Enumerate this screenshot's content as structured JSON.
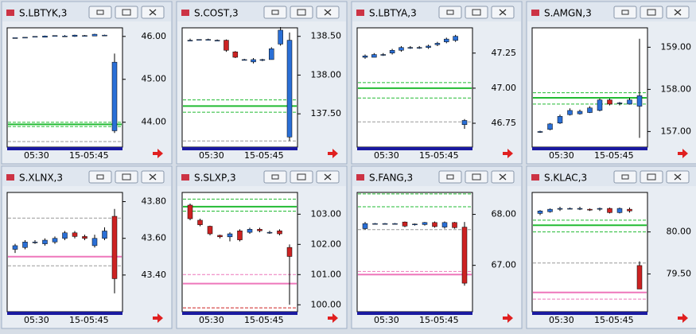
{
  "windows": [
    {
      "title": "S.LBTYK,3",
      "time_labels": [
        "05:30",
        "15-05:45"
      ],
      "ylim": [
        43.42,
        46.2
      ],
      "yticks": [
        {
          "value": 46,
          "label": "46.00"
        },
        {
          "value": 45,
          "label": "45.00"
        },
        {
          "value": 44,
          "label": "44.00"
        }
      ],
      "candles": [
        [
          45.97,
          45.97,
          45.97,
          45.97
        ],
        [
          45.98,
          45.98,
          45.98,
          45.98
        ],
        [
          46.0,
          46.0,
          46.0,
          46.0
        ],
        [
          45.98,
          46.02,
          45.98,
          46.01
        ],
        [
          46.0,
          46.02,
          46.0,
          46.02
        ],
        [
          46.01,
          46.03,
          46.0,
          46.01
        ],
        [
          46.0,
          46.04,
          45.99,
          46.03
        ],
        [
          46.02,
          46.03,
          46.01,
          46.02
        ],
        [
          46.01,
          46.06,
          46.01,
          46.05
        ],
        [
          46.03,
          46.04,
          46.02,
          46.03
        ],
        [
          43.8,
          45.6,
          43.75,
          45.4
        ]
      ],
      "levels": [
        {
          "value": 43.95,
          "color": "#22bb33",
          "dashed": false
        },
        {
          "value": 44.0,
          "color": "#22bb33",
          "dashed": true
        },
        {
          "value": 43.9,
          "color": "#22bb33",
          "dashed": true
        },
        {
          "value": 43.55,
          "color": "#999999",
          "dashed": true
        }
      ]
    },
    {
      "title": "S.COST,3",
      "time_labels": [
        "05:30",
        "15-05:45"
      ],
      "ylim": [
        137.07,
        138.61
      ],
      "yticks": [
        {
          "value": 138.5,
          "label": "138.50"
        },
        {
          "value": 138,
          "label": "138.00"
        },
        {
          "value": 137.5,
          "label": "137.50"
        }
      ],
      "candles": [
        [
          138.45,
          138.47,
          138.44,
          138.45
        ],
        [
          138.46,
          138.46,
          138.46,
          138.46
        ],
        [
          138.46,
          138.47,
          138.45,
          138.46
        ],
        [
          138.45,
          138.46,
          138.44,
          138.45
        ],
        [
          138.45,
          138.46,
          138.3,
          138.32
        ],
        [
          138.3,
          138.31,
          138.22,
          138.23
        ],
        [
          138.2,
          138.21,
          138.19,
          138.2
        ],
        [
          138.17,
          138.22,
          138.15,
          138.2
        ],
        [
          138.2,
          138.21,
          138.18,
          138.2
        ],
        [
          138.2,
          138.36,
          138.2,
          138.34
        ],
        [
          138.4,
          138.62,
          138.38,
          138.58
        ],
        [
          137.2,
          138.55,
          137.15,
          138.45
        ]
      ],
      "levels": [
        {
          "value": 137.6,
          "color": "#22bb33",
          "dashed": false
        },
        {
          "value": 137.68,
          "color": "#22bb33",
          "dashed": true
        },
        {
          "value": 137.52,
          "color": "#22bb33",
          "dashed": true
        },
        {
          "value": 137.15,
          "color": "#999999",
          "dashed": true
        }
      ]
    },
    {
      "title": "S.LBTYA,3",
      "time_labels": [
        "05:30",
        "15-05:45"
      ],
      "ylim": [
        46.58,
        47.43
      ],
      "yticks": [
        {
          "value": 47.25,
          "label": "47.25"
        },
        {
          "value": 47,
          "label": "47.00"
        },
        {
          "value": 46.75,
          "label": "46.75"
        }
      ],
      "candles": [
        [
          47.22,
          47.24,
          47.21,
          47.23
        ],
        [
          47.22,
          47.25,
          47.22,
          47.24
        ],
        [
          47.24,
          47.25,
          47.23,
          47.24
        ],
        [
          47.25,
          47.28,
          47.24,
          47.27
        ],
        [
          47.27,
          47.3,
          47.26,
          47.29
        ],
        [
          47.29,
          47.3,
          47.28,
          47.29
        ],
        [
          47.29,
          47.3,
          47.28,
          47.29
        ],
        [
          47.29,
          47.31,
          47.28,
          47.3
        ],
        [
          47.31,
          47.33,
          47.3,
          47.32
        ],
        [
          47.33,
          47.36,
          47.32,
          47.35
        ],
        [
          47.34,
          47.38,
          47.33,
          47.37
        ],
        [
          46.74,
          46.78,
          46.71,
          46.77
        ]
      ],
      "levels": [
        {
          "value": 47.0,
          "color": "#22bb33",
          "dashed": false
        },
        {
          "value": 47.04,
          "color": "#22bb33",
          "dashed": true
        },
        {
          "value": 46.93,
          "color": "#22bb33",
          "dashed": true
        },
        {
          "value": 46.76,
          "color": "#999999",
          "dashed": true
        }
      ]
    },
    {
      "title": "S.AMGN,3",
      "time_labels": [
        "05:30",
        "15-05:45"
      ],
      "ylim": [
        156.63,
        159.46
      ],
      "yticks": [
        {
          "value": 159,
          "label": "159.00"
        },
        {
          "value": 158,
          "label": "158.00"
        },
        {
          "value": 157,
          "label": "157.00"
        }
      ],
      "candles": [
        [
          156.98,
          157.02,
          156.97,
          157.0
        ],
        [
          157.05,
          157.2,
          157.03,
          157.18
        ],
        [
          157.2,
          157.4,
          157.18,
          157.36
        ],
        [
          157.4,
          157.55,
          157.38,
          157.5
        ],
        [
          157.42,
          157.52,
          157.4,
          157.48
        ],
        [
          157.45,
          157.6,
          157.44,
          157.56
        ],
        [
          157.5,
          157.78,
          157.48,
          157.75
        ],
        [
          157.75,
          157.78,
          157.62,
          157.65
        ],
        [
          157.66,
          157.7,
          157.62,
          157.68
        ],
        [
          157.65,
          157.8,
          157.64,
          157.75
        ],
        [
          157.6,
          159.2,
          156.85,
          157.85
        ]
      ],
      "levels": [
        {
          "value": 157.8,
          "color": "#22bb33",
          "dashed": false
        },
        {
          "value": 157.65,
          "color": "#22bb33",
          "dashed": true
        },
        {
          "value": 157.92,
          "color": "#22bb33",
          "dashed": true
        }
      ]
    },
    {
      "title": "S.XLNX,3",
      "time_labels": [
        "05:30",
        "15-05:45"
      ],
      "ylim": [
        43.2,
        43.85
      ],
      "yticks": [
        {
          "value": 43.8,
          "label": "43.80"
        },
        {
          "value": 43.6,
          "label": "43.60"
        },
        {
          "value": 43.4,
          "label": "43.40"
        }
      ],
      "candles": [
        [
          43.54,
          43.57,
          43.52,
          43.56
        ],
        [
          43.55,
          43.59,
          43.54,
          43.58
        ],
        [
          43.58,
          43.59,
          43.57,
          43.58
        ],
        [
          43.57,
          43.6,
          43.56,
          43.59
        ],
        [
          43.58,
          43.61,
          43.57,
          43.6
        ],
        [
          43.6,
          43.64,
          43.59,
          43.63
        ],
        [
          43.63,
          43.64,
          43.6,
          43.61
        ],
        [
          43.61,
          43.62,
          43.59,
          43.6
        ],
        [
          43.56,
          43.62,
          43.55,
          43.6
        ],
        [
          43.6,
          43.66,
          43.59,
          43.64
        ],
        [
          43.72,
          43.76,
          43.3,
          43.38
        ]
      ],
      "levels": [
        {
          "value": 43.5,
          "color": "#ee77bb",
          "dashed": false
        },
        {
          "value": 43.71,
          "color": "#999999",
          "dashed": true
        },
        {
          "value": 43.45,
          "color": "#999999",
          "dashed": true
        }
      ]
    },
    {
      "title": "S.SLXP,3",
      "time_labels": [
        "05:30",
        "15-05:45"
      ],
      "ylim": [
        99.77,
        103.72
      ],
      "yticks": [
        {
          "value": 103,
          "label": "103.00"
        },
        {
          "value": 102,
          "label": "102.00"
        },
        {
          "value": 101,
          "label": "101.00"
        },
        {
          "value": 100,
          "label": "100.00"
        }
      ],
      "candles": [
        [
          103.3,
          103.35,
          102.8,
          102.85
        ],
        [
          102.8,
          102.85,
          102.6,
          102.65
        ],
        [
          102.6,
          102.62,
          102.3,
          102.35
        ],
        [
          102.3,
          102.32,
          102.2,
          102.25
        ],
        [
          102.25,
          102.4,
          102.1,
          102.35
        ],
        [
          102.45,
          102.5,
          102.1,
          102.15
        ],
        [
          102.4,
          102.55,
          102.35,
          102.5
        ],
        [
          102.5,
          102.55,
          102.4,
          102.45
        ],
        [
          102.4,
          102.45,
          102.35,
          102.4
        ],
        [
          102.45,
          102.5,
          102.3,
          102.35
        ],
        [
          101.9,
          102.0,
          100.0,
          101.6
        ]
      ],
      "levels": [
        {
          "value": 103.25,
          "color": "#22bb33",
          "dashed": false
        },
        {
          "value": 103.5,
          "color": "#22bb33",
          "dashed": true
        },
        {
          "value": 103.1,
          "color": "#22bb33",
          "dashed": true
        },
        {
          "value": 100.7,
          "color": "#ee77bb",
          "dashed": false
        },
        {
          "value": 101.0,
          "color": "#ee77bb",
          "dashed": true
        },
        {
          "value": 99.9,
          "color": "#cc2222",
          "dashed": true
        }
      ]
    },
    {
      "title": "S.FANG,3",
      "time_labels": [
        "05:30",
        "15-05:45"
      ],
      "ylim": [
        66.09,
        68.43
      ],
      "yticks": [
        {
          "value": 68,
          "label": "68.00"
        },
        {
          "value": 67,
          "label": "67.00"
        }
      ],
      "candles": [
        [
          67.72,
          67.85,
          67.7,
          67.82
        ],
        [
          67.82,
          67.83,
          67.81,
          67.82
        ],
        [
          67.82,
          67.83,
          67.81,
          67.82
        ],
        [
          67.82,
          67.83,
          67.81,
          67.82
        ],
        [
          67.85,
          67.86,
          67.75,
          67.77
        ],
        [
          67.8,
          67.82,
          67.78,
          67.81
        ],
        [
          67.8,
          67.85,
          67.78,
          67.84
        ],
        [
          67.84,
          67.86,
          67.74,
          67.76
        ],
        [
          67.75,
          67.86,
          67.72,
          67.84
        ],
        [
          67.84,
          67.85,
          67.72,
          67.74
        ],
        [
          67.75,
          67.85,
          66.6,
          66.65
        ]
      ],
      "levels": [
        {
          "value": 68.4,
          "color": "#22bb33",
          "dashed": true
        },
        {
          "value": 68.15,
          "color": "#22bb33",
          "dashed": true
        },
        {
          "value": 67.7,
          "color": "#999999",
          "dashed": true
        },
        {
          "value": 66.82,
          "color": "#ee77bb",
          "dashed": false
        },
        {
          "value": 66.88,
          "color": "#ee77bb",
          "dashed": true
        }
      ]
    },
    {
      "title": "S.KLAC,3",
      "time_labels": [
        "05:30",
        "15-05:45"
      ],
      "ylim": [
        79.05,
        80.47
      ],
      "yticks": [
        {
          "value": 80,
          "label": "80.00"
        },
        {
          "value": 79.5,
          "label": "79.50"
        }
      ],
      "candles": [
        [
          80.22,
          80.26,
          80.2,
          80.25
        ],
        [
          80.24,
          80.28,
          80.23,
          80.27
        ],
        [
          80.27,
          80.3,
          80.25,
          80.28
        ],
        [
          80.28,
          80.29,
          80.27,
          80.28
        ],
        [
          80.28,
          80.3,
          80.26,
          80.28
        ],
        [
          80.27,
          80.28,
          80.25,
          80.26
        ],
        [
          80.27,
          80.29,
          80.25,
          80.28
        ],
        [
          80.28,
          80.29,
          80.22,
          80.23
        ],
        [
          80.23,
          80.29,
          80.22,
          80.28
        ],
        [
          80.27,
          80.29,
          80.23,
          80.25
        ],
        [
          79.6,
          79.65,
          79.32,
          79.32
        ]
      ],
      "levels": [
        {
          "value": 80.08,
          "color": "#22bb33",
          "dashed": false
        },
        {
          "value": 80.14,
          "color": "#22bb33",
          "dashed": true
        },
        {
          "value": 80.0,
          "color": "#22bb33",
          "dashed": true
        },
        {
          "value": 79.63,
          "color": "#999999",
          "dashed": true
        },
        {
          "value": 79.28,
          "color": "#ee77bb",
          "dashed": false
        },
        {
          "value": 79.2,
          "color": "#ee77bb",
          "dashed": true
        }
      ]
    }
  ]
}
